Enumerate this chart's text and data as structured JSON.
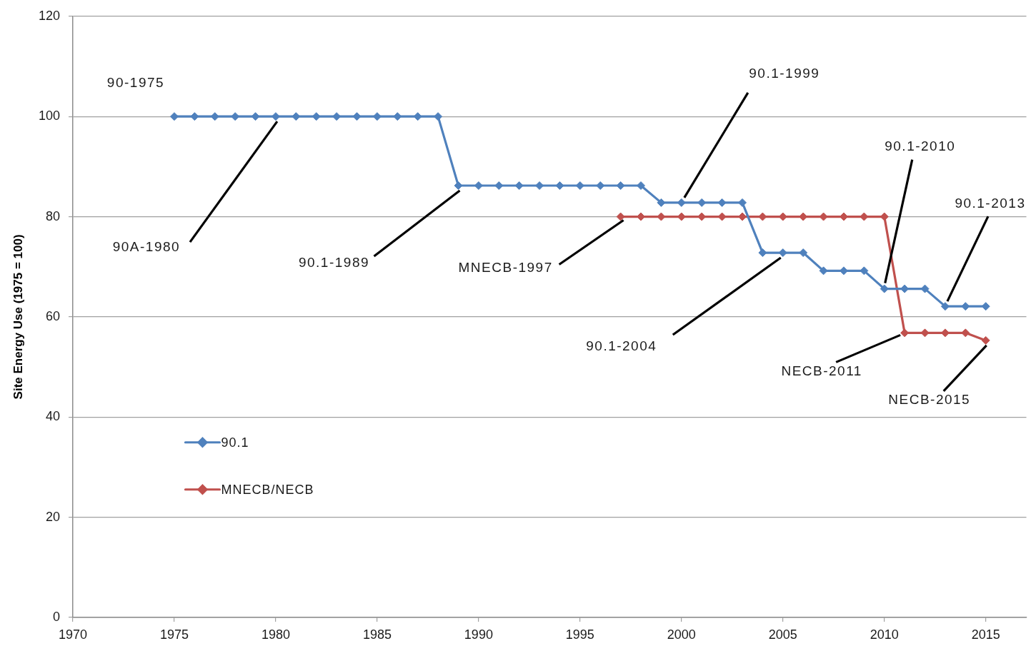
{
  "chart_data": {
    "type": "line",
    "ylabel": "Site Energy Use (1975 = 100)",
    "xlim": [
      1970,
      2017
    ],
    "xticks": [
      1970,
      1975,
      1980,
      1985,
      1990,
      1995,
      2000,
      2005,
      2010,
      2015
    ],
    "ylim": [
      0,
      120
    ],
    "yticks": [
      0,
      20,
      40,
      60,
      80,
      100,
      120
    ],
    "grid": "y",
    "legend": "left",
    "marker": "diamond",
    "line_style": "solid",
    "series": [
      {
        "name": "90.1",
        "color": "#4f81bd",
        "x": [
          1975,
          1976,
          1977,
          1978,
          1979,
          1980,
          1981,
          1982,
          1983,
          1984,
          1985,
          1986,
          1987,
          1988,
          1989,
          1990,
          1991,
          1992,
          1993,
          1994,
          1995,
          1996,
          1997,
          1998,
          1999,
          2000,
          2001,
          2002,
          2003,
          2004,
          2005,
          2006,
          2007,
          2008,
          2009,
          2010,
          2011,
          2012,
          2013,
          2014,
          2015
        ],
        "values": [
          100,
          100,
          100,
          100,
          100,
          100,
          100,
          100,
          100,
          100,
          100,
          100,
          100,
          100,
          86.2,
          86.2,
          86.2,
          86.2,
          86.2,
          86.2,
          86.2,
          86.2,
          86.2,
          86.2,
          82.8,
          82.8,
          82.8,
          82.8,
          82.8,
          72.8,
          72.8,
          72.8,
          69.2,
          69.2,
          69.2,
          65.6,
          65.6,
          65.6,
          62.1,
          62.1,
          62.1
        ]
      },
      {
        "name": "MNECB/NECB",
        "color": "#c0504d",
        "x": [
          1997,
          1998,
          1999,
          2000,
          2001,
          2002,
          2003,
          2004,
          2005,
          2006,
          2007,
          2008,
          2009,
          2010,
          2011,
          2012,
          2013,
          2014,
          2015
        ],
        "values": [
          80,
          80,
          80,
          80,
          80,
          80,
          80,
          80,
          80,
          80,
          80,
          80,
          80,
          80,
          56.8,
          56.8,
          56.8,
          56.8,
          55.3
        ]
      }
    ],
    "annotations": [
      {
        "text": "90-1975",
        "x": 1975,
        "y": 100
      },
      {
        "text": "90A-1980",
        "x": 1980,
        "y": 100
      },
      {
        "text": "90.1-1989",
        "x": 1989,
        "y": 86.2
      },
      {
        "text": "MNECB-1997",
        "x": 1997,
        "y": 80
      },
      {
        "text": "90.1-1999",
        "x": 2000,
        "y": 82.8
      },
      {
        "text": "90.1-2004",
        "x": 2005,
        "y": 72.8
      },
      {
        "text": "90.1-2010",
        "x": 2010,
        "y": 65.6
      },
      {
        "text": "90.1-2013",
        "x": 2013,
        "y": 62.1
      },
      {
        "text": "NECB-2011",
        "x": 2011,
        "y": 56.8
      },
      {
        "text": "NECB-2015",
        "x": 2015,
        "y": 55.3
      }
    ]
  }
}
